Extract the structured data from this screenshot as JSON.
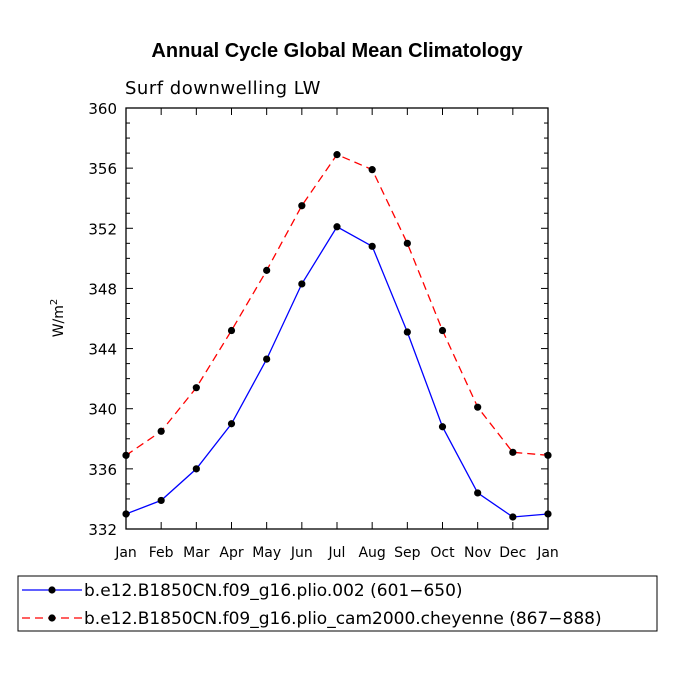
{
  "chart_data": {
    "type": "line",
    "title": "Annual Cycle Global Mean Climatology",
    "subtitle": "Surf downwelling LW",
    "ylabel_base": "W/m",
    "ylabel_sup": "2",
    "xlabel": "",
    "categories": [
      "Jan",
      "Feb",
      "Mar",
      "Apr",
      "May",
      "Jun",
      "Jul",
      "Aug",
      "Sep",
      "Oct",
      "Nov",
      "Dec",
      "Jan"
    ],
    "ylim": [
      332,
      360
    ],
    "yticks": [
      332,
      336,
      340,
      344,
      348,
      352,
      356,
      360
    ],
    "series": [
      {
        "name": "b.e12.B1850CN.f09_g16.plio.002 (601−650)",
        "color": "#0000ff",
        "dash": "solid",
        "values": [
          333.0,
          333.9,
          336.0,
          339.0,
          343.3,
          348.3,
          352.1,
          350.8,
          345.1,
          338.8,
          334.4,
          332.8,
          333.0
        ]
      },
      {
        "name": "b.e12.B1850CN.f09_g16.plio_cam2000.cheyenne (867−888)",
        "color": "#ff0000",
        "dash": "dashed",
        "values": [
          336.9,
          338.5,
          341.4,
          345.2,
          349.2,
          353.5,
          356.9,
          355.9,
          351.0,
          345.2,
          340.1,
          337.1,
          336.9
        ]
      }
    ],
    "legend_position": "bottom"
  }
}
